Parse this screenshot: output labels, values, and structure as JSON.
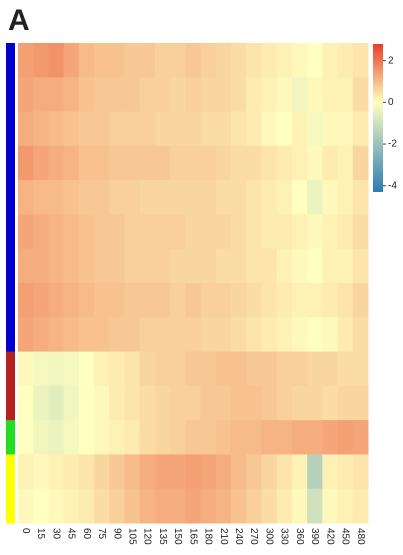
{
  "chart_data": {
    "type": "heatmap",
    "panel_label": "A",
    "categories": [
      "0",
      "15",
      "30",
      "45",
      "60",
      "75",
      "90",
      "105",
      "120",
      "135",
      "150",
      "165",
      "180",
      "210",
      "240",
      "270",
      "300",
      "330",
      "360",
      "390",
      "420",
      "450",
      "480"
    ],
    "rows": [
      [
        1.4,
        1.5,
        1.6,
        1.3,
        1.0,
        0.9,
        0.9,
        0.8,
        0.8,
        0.7,
        0.7,
        0.8,
        0.7,
        0.6,
        0.5,
        0.4,
        0.3,
        0.2,
        0.1,
        0.0,
        0.2,
        0.3,
        0.4
      ],
      [
        1.3,
        1.2,
        1.2,
        1.1,
        0.9,
        0.8,
        0.8,
        0.8,
        0.7,
        0.7,
        0.6,
        0.7,
        0.6,
        0.6,
        0.5,
        0.3,
        0.2,
        0.1,
        -0.3,
        0.1,
        0.2,
        0.2,
        0.5
      ],
      [
        1.2,
        1.1,
        1.0,
        0.9,
        0.8,
        0.8,
        0.7,
        0.7,
        0.7,
        0.6,
        0.6,
        0.6,
        0.5,
        0.5,
        0.4,
        0.3,
        0.1,
        0.0,
        0.2,
        -0.2,
        0.1,
        0.1,
        0.3
      ],
      [
        1.5,
        1.3,
        1.2,
        1.1,
        0.9,
        0.9,
        0.8,
        0.8,
        0.8,
        0.8,
        0.7,
        0.7,
        0.7,
        0.6,
        0.5,
        0.5,
        0.4,
        0.3,
        0.2,
        0.1,
        0.3,
        0.2,
        0.6
      ],
      [
        1.1,
        1.0,
        1.0,
        0.9,
        0.8,
        0.8,
        0.7,
        0.7,
        0.6,
        0.6,
        0.6,
        0.6,
        0.6,
        0.5,
        0.5,
        0.4,
        0.3,
        0.2,
        0.0,
        -0.4,
        0.1,
        0.2,
        0.4
      ],
      [
        1.3,
        1.2,
        1.1,
        1.0,
        0.9,
        0.8,
        0.8,
        0.7,
        0.7,
        0.7,
        0.7,
        0.6,
        0.6,
        0.6,
        0.5,
        0.4,
        0.3,
        0.3,
        0.2,
        0.1,
        0.2,
        0.3,
        0.5
      ],
      [
        1.2,
        1.2,
        1.1,
        1.0,
        0.9,
        0.8,
        0.8,
        0.7,
        0.7,
        0.7,
        0.6,
        0.6,
        0.6,
        0.5,
        0.5,
        0.4,
        0.4,
        0.2,
        0.1,
        0.0,
        0.2,
        0.2,
        0.4
      ],
      [
        1.4,
        1.3,
        1.2,
        1.1,
        1.0,
        0.9,
        0.9,
        0.8,
        0.8,
        0.8,
        0.7,
        0.8,
        0.7,
        0.7,
        0.6,
        0.5,
        0.4,
        0.3,
        0.2,
        0.2,
        0.3,
        0.4,
        0.6
      ],
      [
        1.3,
        1.2,
        1.1,
        1.0,
        0.9,
        0.9,
        0.8,
        0.8,
        0.7,
        0.7,
        0.7,
        0.7,
        0.6,
        0.6,
        0.5,
        0.4,
        0.3,
        0.2,
        0.1,
        0.0,
        0.1,
        0.3,
        0.5
      ],
      [
        0.1,
        -0.2,
        -0.3,
        -0.2,
        0.0,
        0.2,
        0.3,
        0.4,
        0.6,
        0.7,
        0.7,
        0.8,
        0.8,
        0.9,
        0.9,
        0.8,
        0.8,
        0.7,
        0.7,
        0.6,
        0.6,
        0.5,
        0.5
      ],
      [
        0.0,
        -0.4,
        -0.6,
        -0.3,
        0.0,
        0.1,
        0.3,
        0.4,
        0.5,
        0.6,
        0.7,
        0.7,
        0.8,
        0.8,
        0.9,
        0.9,
        0.8,
        0.7,
        0.6,
        0.6,
        0.5,
        0.6,
        0.6
      ],
      [
        0.0,
        -0.3,
        -0.4,
        -0.2,
        0.0,
        0.1,
        0.2,
        0.3,
        0.5,
        0.6,
        0.7,
        0.8,
        0.8,
        0.9,
        1.0,
        1.0,
        1.1,
        1.1,
        1.2,
        1.2,
        1.3,
        1.4,
        1.3
      ],
      [
        0.2,
        0.1,
        0.2,
        0.3,
        0.4,
        0.6,
        0.8,
        1.0,
        1.2,
        1.3,
        1.3,
        1.4,
        1.3,
        1.2,
        1.0,
        0.8,
        0.6,
        0.4,
        0.2,
        -1.5,
        0.2,
        0.3,
        0.4
      ],
      [
        0.1,
        0.0,
        0.1,
        0.2,
        0.3,
        0.5,
        0.7,
        0.9,
        1.1,
        1.2,
        1.2,
        1.3,
        1.2,
        1.1,
        0.9,
        0.7,
        0.5,
        0.3,
        0.1,
        -1.0,
        0.1,
        0.2,
        0.3
      ]
    ],
    "row_colors": [
      "#0000cc",
      "#0000cc",
      "#0000cc",
      "#0000cc",
      "#0000cc",
      "#0000cc",
      "#0000cc",
      "#0000cc",
      "#0000cc",
      "#b22222",
      "#b22222",
      "#22dd22",
      "#ffff00",
      "#ffff00"
    ],
    "zlim": [
      -4.3,
      2.8
    ],
    "zticks": [
      2,
      0,
      -2,
      -4
    ],
    "colors": [
      "#2c7bb6",
      "#ffffbf",
      "#e8402a"
    ]
  }
}
